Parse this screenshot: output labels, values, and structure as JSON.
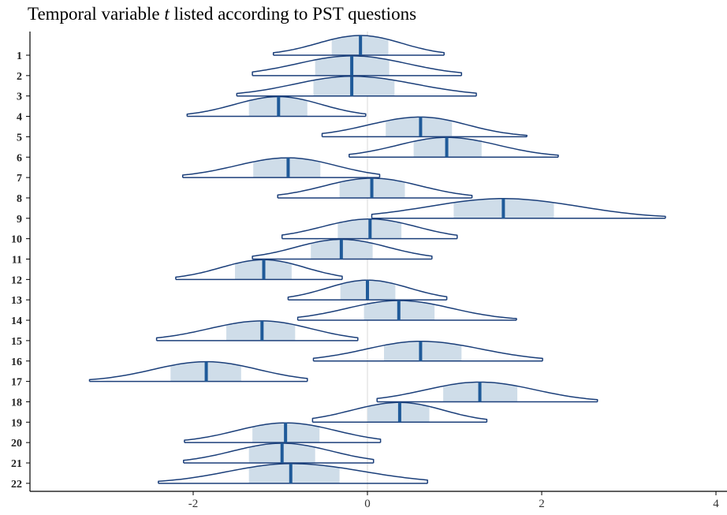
{
  "title": {
    "prefix": "Temporal variable ",
    "variable": "t",
    "suffix": " listed according to PST questions"
  },
  "colors": {
    "outline": "#1b3f7a",
    "interval_fill": "#cfdde9",
    "median": "#1f5a99",
    "zero_line": "#d9d9d9",
    "axis": "#000000"
  },
  "chart_data": {
    "type": "ridgeline",
    "title": "Temporal variable t listed according to PST questions",
    "xlabel": "",
    "ylabel": "",
    "xlim": [
      -3.2,
      4.0
    ],
    "x_ticks": [
      -2,
      0,
      2,
      4
    ],
    "x_tick_labels": [
      "-2",
      "0",
      "2",
      "4"
    ],
    "categories": [
      "1",
      "2",
      "3",
      "4",
      "5",
      "6",
      "7",
      "8",
      "9",
      "10",
      "11",
      "12",
      "13",
      "14",
      "15",
      "16",
      "17",
      "18",
      "19",
      "20",
      "21",
      "22"
    ],
    "reference_line": 0,
    "grid": false,
    "series": [
      {
        "category": "1",
        "median": -0.08,
        "interval": [
          -0.41,
          0.24
        ],
        "range": [
          -1.08,
          0.88
        ]
      },
      {
        "category": "2",
        "median": -0.18,
        "interval": [
          -0.6,
          0.25
        ],
        "range": [
          -1.32,
          1.08
        ]
      },
      {
        "category": "3",
        "median": -0.18,
        "interval": [
          -0.62,
          0.31
        ],
        "range": [
          -1.5,
          1.25
        ]
      },
      {
        "category": "4",
        "median": -1.02,
        "interval": [
          -1.36,
          -0.69
        ],
        "range": [
          -2.07,
          -0.02
        ]
      },
      {
        "category": "5",
        "median": 0.61,
        "interval": [
          0.21,
          0.97
        ],
        "range": [
          -0.52,
          1.83
        ]
      },
      {
        "category": "6",
        "median": 0.91,
        "interval": [
          0.53,
          1.31
        ],
        "range": [
          -0.21,
          2.19
        ]
      },
      {
        "category": "7",
        "median": -0.91,
        "interval": [
          -1.31,
          -0.54
        ],
        "range": [
          -2.12,
          0.14
        ]
      },
      {
        "category": "8",
        "median": 0.05,
        "interval": [
          -0.32,
          0.43
        ],
        "range": [
          -1.03,
          1.2
        ]
      },
      {
        "category": "9",
        "median": 1.56,
        "interval": [
          0.99,
          2.14
        ],
        "range": [
          0.05,
          3.42
        ]
      },
      {
        "category": "10",
        "median": 0.03,
        "interval": [
          -0.34,
          0.39
        ],
        "range": [
          -0.98,
          1.03
        ]
      },
      {
        "category": "11",
        "median": -0.3,
        "interval": [
          -0.65,
          0.06
        ],
        "range": [
          -1.32,
          0.74
        ]
      },
      {
        "category": "12",
        "median": -1.19,
        "interval": [
          -1.52,
          -0.87
        ],
        "range": [
          -2.2,
          -0.29
        ]
      },
      {
        "category": "13",
        "median": 0.0,
        "interval": [
          -0.31,
          0.32
        ],
        "range": [
          -0.91,
          0.91
        ]
      },
      {
        "category": "14",
        "median": 0.36,
        "interval": [
          -0.04,
          0.77
        ],
        "range": [
          -0.8,
          1.71
        ]
      },
      {
        "category": "15",
        "median": -1.21,
        "interval": [
          -1.62,
          -0.83
        ],
        "range": [
          -2.42,
          -0.11
        ]
      },
      {
        "category": "16",
        "median": 0.61,
        "interval": [
          0.19,
          1.08
        ],
        "range": [
          -0.62,
          2.01
        ]
      },
      {
        "category": "17",
        "median": -1.85,
        "interval": [
          -2.26,
          -1.45
        ],
        "range": [
          -3.19,
          -0.69
        ]
      },
      {
        "category": "18",
        "median": 1.29,
        "interval": [
          0.87,
          1.72
        ],
        "range": [
          0.11,
          2.64
        ]
      },
      {
        "category": "19",
        "median": 0.37,
        "interval": [
          0.0,
          0.71
        ],
        "range": [
          -0.63,
          1.37
        ]
      },
      {
        "category": "20",
        "median": -0.94,
        "interval": [
          -1.32,
          -0.55
        ],
        "range": [
          -2.1,
          0.15
        ]
      },
      {
        "category": "21",
        "median": -0.98,
        "interval": [
          -1.36,
          -0.6
        ],
        "range": [
          -2.11,
          0.07
        ]
      },
      {
        "category": "22",
        "median": -0.88,
        "interval": [
          -1.36,
          -0.32
        ],
        "range": [
          -2.4,
          0.69
        ]
      }
    ]
  }
}
